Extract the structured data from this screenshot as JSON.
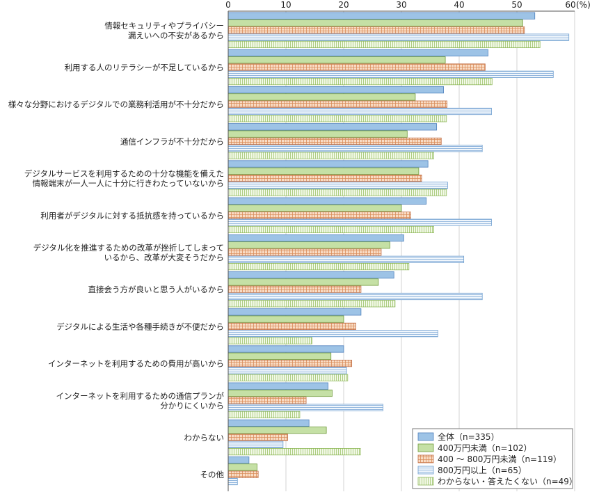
{
  "chart_data": {
    "type": "bar",
    "orientation": "horizontal",
    "unit": "(%)",
    "xlim": [
      0,
      60
    ],
    "xticks": [
      "0",
      "10",
      "20",
      "30",
      "40",
      "50",
      "60"
    ],
    "categories": [
      [
        "情報セキュリティやプライバシー",
        "漏えいへの不安があるから"
      ],
      [
        "利用する人のリテラシーが不足しているから"
      ],
      [
        "様々な分野におけるデジタルでの業務利活用が不十分だから"
      ],
      [
        "通信インフラが不十分だから"
      ],
      [
        "デジタルサービスを利用するための十分な機能を備えた",
        "情報端末が一人一人に十分に行きわたっていないから"
      ],
      [
        "利用者がデジタルに対する抵抗感を持っているから"
      ],
      [
        "デジタル化を推進するための改革が挫折してしまって",
        "いるから、改革が大変そうだから"
      ],
      [
        "直接会う方が良いと思う人がいるから"
      ],
      [
        "デジタルによる生活や各種手続きが不便だから"
      ],
      [
        "インターネットを利用するための費用が高いから"
      ],
      [
        "インターネットを利用するための通信プランが",
        "分かりにくいから"
      ],
      [
        "わからない"
      ],
      [
        "その他"
      ]
    ],
    "series": [
      {
        "name": "全体（n=335）",
        "color": "#9dc3e6",
        "pattern": "solid",
        "values": [
          53.1,
          45.0,
          37.3,
          36.1,
          34.6,
          34.3,
          30.4,
          28.7,
          23.0,
          20.0,
          17.3,
          14.0,
          3.6
        ]
      },
      {
        "name": "400万円未満（n=102）",
        "color": "#c5e0a5",
        "pattern": "solid",
        "values": [
          51.0,
          37.6,
          32.4,
          31.0,
          33.0,
          30.0,
          28.0,
          26.0,
          20.0,
          17.8,
          18.0,
          17.0,
          5.0
        ]
      },
      {
        "name": "400 ～ 800万円未満（n=119）",
        "color": "#f4c8a8",
        "pattern": "grid",
        "values": [
          51.3,
          44.5,
          37.9,
          36.9,
          33.5,
          31.6,
          26.5,
          23.0,
          22.1,
          21.4,
          13.5,
          10.3,
          5.2
        ]
      },
      {
        "name": "800万円以上（n=65）",
        "color": "#dce9f6",
        "pattern": "hstripe",
        "values": [
          59.0,
          56.3,
          45.6,
          44.0,
          38.0,
          45.6,
          40.8,
          44.0,
          36.3,
          20.5,
          26.8,
          9.5,
          1.6
        ]
      },
      {
        "name": "わからない・答えたくない（n=49）",
        "color": "#e6f2d2",
        "pattern": "vstripe",
        "values": [
          54.0,
          45.7,
          37.8,
          35.6,
          37.8,
          35.6,
          31.3,
          28.9,
          14.5,
          20.7,
          12.4,
          22.9,
          0.0
        ]
      }
    ],
    "legend_position": "bottom-right",
    "grid": true
  }
}
